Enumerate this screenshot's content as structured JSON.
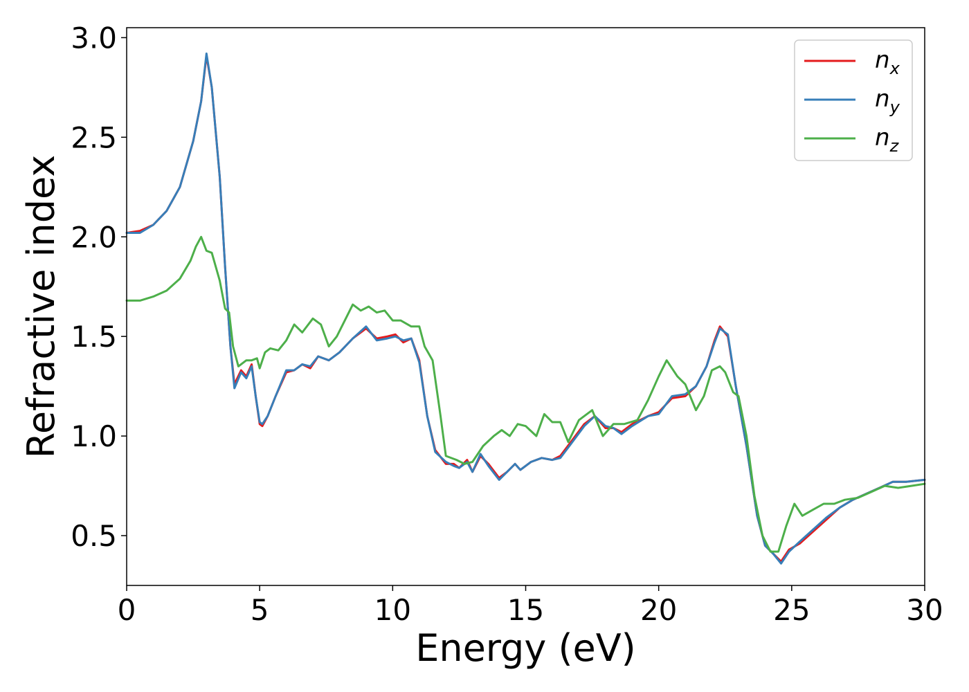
{
  "chart_data": {
    "type": "line",
    "title": "",
    "xlabel": "Energy (eV)",
    "ylabel": "Refractive index",
    "xlim": [
      0,
      30
    ],
    "ylim": [
      0.25,
      3.05
    ],
    "xticks": [
      0,
      5,
      10,
      15,
      20,
      25,
      30
    ],
    "xtick_labels": [
      "0",
      "5",
      "10",
      "15",
      "20",
      "25",
      "30"
    ],
    "yticks": [
      0.5,
      1.0,
      1.5,
      2.0,
      2.5,
      3.0
    ],
    "ytick_labels": [
      "0.5",
      "1.0",
      "1.5",
      "2.0",
      "2.5",
      "3.0"
    ],
    "grid": false,
    "legend_position": "top-right",
    "series": [
      {
        "name": "n_x",
        "label_main": "n",
        "label_sub": "x",
        "color": "#e41a1c",
        "points": [
          [
            0,
            2.02
          ],
          [
            0.5,
            2.03
          ],
          [
            1,
            2.06
          ],
          [
            1.5,
            2.13
          ],
          [
            2,
            2.25
          ],
          [
            2.5,
            2.48
          ],
          [
            2.8,
            2.68
          ],
          [
            3.0,
            2.91
          ],
          [
            3.2,
            2.75
          ],
          [
            3.5,
            2.3
          ],
          [
            3.7,
            1.85
          ],
          [
            3.9,
            1.45
          ],
          [
            4.05,
            1.26
          ],
          [
            4.3,
            1.33
          ],
          [
            4.5,
            1.3
          ],
          [
            4.7,
            1.36
          ],
          [
            4.85,
            1.2
          ],
          [
            5.0,
            1.06
          ],
          [
            5.1,
            1.05
          ],
          [
            5.3,
            1.1
          ],
          [
            5.6,
            1.2
          ],
          [
            6.0,
            1.32
          ],
          [
            6.3,
            1.33
          ],
          [
            6.6,
            1.36
          ],
          [
            6.9,
            1.34
          ],
          [
            7.2,
            1.4
          ],
          [
            7.6,
            1.38
          ],
          [
            8.0,
            1.42
          ],
          [
            8.5,
            1.49
          ],
          [
            9.0,
            1.54
          ],
          [
            9.4,
            1.49
          ],
          [
            9.8,
            1.5
          ],
          [
            10.1,
            1.51
          ],
          [
            10.4,
            1.47
          ],
          [
            10.7,
            1.49
          ],
          [
            11.0,
            1.38
          ],
          [
            11.3,
            1.1
          ],
          [
            11.6,
            0.93
          ],
          [
            12.0,
            0.86
          ],
          [
            12.3,
            0.86
          ],
          [
            12.5,
            0.84
          ],
          [
            12.8,
            0.88
          ],
          [
            13.0,
            0.82
          ],
          [
            13.3,
            0.9
          ],
          [
            13.6,
            0.86
          ],
          [
            14.0,
            0.79
          ],
          [
            14.3,
            0.82
          ],
          [
            14.6,
            0.86
          ],
          [
            14.8,
            0.83
          ],
          [
            15.2,
            0.87
          ],
          [
            15.6,
            0.89
          ],
          [
            16.0,
            0.88
          ],
          [
            16.3,
            0.9
          ],
          [
            16.7,
            0.97
          ],
          [
            17.2,
            1.06
          ],
          [
            17.6,
            1.1
          ],
          [
            18.0,
            1.04
          ],
          [
            18.3,
            1.04
          ],
          [
            18.6,
            1.02
          ],
          [
            19.0,
            1.06
          ],
          [
            19.6,
            1.1
          ],
          [
            20.0,
            1.12
          ],
          [
            20.5,
            1.19
          ],
          [
            21.0,
            1.2
          ],
          [
            21.4,
            1.25
          ],
          [
            21.8,
            1.35
          ],
          [
            22.1,
            1.48
          ],
          [
            22.3,
            1.55
          ],
          [
            22.6,
            1.5
          ],
          [
            22.9,
            1.25
          ],
          [
            23.3,
            0.95
          ],
          [
            23.7,
            0.6
          ],
          [
            24.0,
            0.45
          ],
          [
            24.3,
            0.41
          ],
          [
            24.6,
            0.37
          ],
          [
            24.9,
            0.43
          ],
          [
            25.3,
            0.46
          ],
          [
            25.8,
            0.52
          ],
          [
            26.3,
            0.58
          ],
          [
            26.8,
            0.64
          ],
          [
            27.3,
            0.68
          ],
          [
            27.8,
            0.71
          ],
          [
            28.3,
            0.74
          ],
          [
            28.8,
            0.77
          ],
          [
            29.3,
            0.77
          ],
          [
            30.0,
            0.78
          ]
        ]
      },
      {
        "name": "n_y",
        "label_main": "n",
        "label_sub": "y",
        "color": "#377eb8",
        "points": [
          [
            0,
            2.02
          ],
          [
            0.5,
            2.02
          ],
          [
            1,
            2.06
          ],
          [
            1.5,
            2.13
          ],
          [
            2,
            2.25
          ],
          [
            2.5,
            2.48
          ],
          [
            2.8,
            2.68
          ],
          [
            3.0,
            2.92
          ],
          [
            3.2,
            2.75
          ],
          [
            3.5,
            2.3
          ],
          [
            3.7,
            1.85
          ],
          [
            3.9,
            1.45
          ],
          [
            4.05,
            1.24
          ],
          [
            4.3,
            1.32
          ],
          [
            4.5,
            1.29
          ],
          [
            4.7,
            1.35
          ],
          [
            4.85,
            1.2
          ],
          [
            5.0,
            1.07
          ],
          [
            5.1,
            1.06
          ],
          [
            5.3,
            1.1
          ],
          [
            5.6,
            1.2
          ],
          [
            6.0,
            1.33
          ],
          [
            6.3,
            1.33
          ],
          [
            6.6,
            1.36
          ],
          [
            6.9,
            1.35
          ],
          [
            7.2,
            1.4
          ],
          [
            7.6,
            1.38
          ],
          [
            8.0,
            1.42
          ],
          [
            8.5,
            1.49
          ],
          [
            9.0,
            1.55
          ],
          [
            9.4,
            1.48
          ],
          [
            9.8,
            1.49
          ],
          [
            10.1,
            1.5
          ],
          [
            10.4,
            1.48
          ],
          [
            10.7,
            1.49
          ],
          [
            11.0,
            1.37
          ],
          [
            11.3,
            1.1
          ],
          [
            11.6,
            0.92
          ],
          [
            12.0,
            0.87
          ],
          [
            12.3,
            0.85
          ],
          [
            12.5,
            0.84
          ],
          [
            12.8,
            0.87
          ],
          [
            13.0,
            0.82
          ],
          [
            13.3,
            0.91
          ],
          [
            13.6,
            0.85
          ],
          [
            14.0,
            0.78
          ],
          [
            14.3,
            0.82
          ],
          [
            14.6,
            0.86
          ],
          [
            14.8,
            0.83
          ],
          [
            15.2,
            0.87
          ],
          [
            15.6,
            0.89
          ],
          [
            16.0,
            0.88
          ],
          [
            16.3,
            0.89
          ],
          [
            16.7,
            0.96
          ],
          [
            17.2,
            1.05
          ],
          [
            17.6,
            1.1
          ],
          [
            18.0,
            1.05
          ],
          [
            18.3,
            1.04
          ],
          [
            18.6,
            1.01
          ],
          [
            19.0,
            1.05
          ],
          [
            19.6,
            1.1
          ],
          [
            20.0,
            1.11
          ],
          [
            20.5,
            1.2
          ],
          [
            21.0,
            1.21
          ],
          [
            21.4,
            1.25
          ],
          [
            21.8,
            1.35
          ],
          [
            22.1,
            1.47
          ],
          [
            22.3,
            1.54
          ],
          [
            22.6,
            1.51
          ],
          [
            22.9,
            1.25
          ],
          [
            23.3,
            0.95
          ],
          [
            23.7,
            0.6
          ],
          [
            24.0,
            0.45
          ],
          [
            24.3,
            0.41
          ],
          [
            24.6,
            0.36
          ],
          [
            24.9,
            0.42
          ],
          [
            25.3,
            0.47
          ],
          [
            25.8,
            0.53
          ],
          [
            26.3,
            0.59
          ],
          [
            26.8,
            0.64
          ],
          [
            27.3,
            0.68
          ],
          [
            27.8,
            0.71
          ],
          [
            28.3,
            0.74
          ],
          [
            28.8,
            0.77
          ],
          [
            29.3,
            0.77
          ],
          [
            30.0,
            0.78
          ]
        ]
      },
      {
        "name": "n_z",
        "label_main": "n",
        "label_sub": "z",
        "color": "#4daf4a",
        "points": [
          [
            0,
            1.68
          ],
          [
            0.5,
            1.68
          ],
          [
            1,
            1.7
          ],
          [
            1.5,
            1.73
          ],
          [
            2,
            1.79
          ],
          [
            2.4,
            1.88
          ],
          [
            2.6,
            1.95
          ],
          [
            2.8,
            2.0
          ],
          [
            3.0,
            1.93
          ],
          [
            3.2,
            1.92
          ],
          [
            3.5,
            1.78
          ],
          [
            3.7,
            1.64
          ],
          [
            3.85,
            1.62
          ],
          [
            4.0,
            1.45
          ],
          [
            4.2,
            1.35
          ],
          [
            4.5,
            1.38
          ],
          [
            4.7,
            1.38
          ],
          [
            4.9,
            1.39
          ],
          [
            5.0,
            1.34
          ],
          [
            5.2,
            1.42
          ],
          [
            5.4,
            1.44
          ],
          [
            5.7,
            1.43
          ],
          [
            6.0,
            1.48
          ],
          [
            6.3,
            1.56
          ],
          [
            6.6,
            1.52
          ],
          [
            7.0,
            1.59
          ],
          [
            7.3,
            1.56
          ],
          [
            7.6,
            1.45
          ],
          [
            7.9,
            1.5
          ],
          [
            8.2,
            1.58
          ],
          [
            8.5,
            1.66
          ],
          [
            8.8,
            1.63
          ],
          [
            9.1,
            1.65
          ],
          [
            9.4,
            1.62
          ],
          [
            9.7,
            1.63
          ],
          [
            10.0,
            1.58
          ],
          [
            10.3,
            1.58
          ],
          [
            10.7,
            1.55
          ],
          [
            11.0,
            1.55
          ],
          [
            11.2,
            1.45
          ],
          [
            11.5,
            1.38
          ],
          [
            11.8,
            1.1
          ],
          [
            12.0,
            0.9
          ],
          [
            12.4,
            0.88
          ],
          [
            12.7,
            0.86
          ],
          [
            13.0,
            0.87
          ],
          [
            13.4,
            0.95
          ],
          [
            13.8,
            1.0
          ],
          [
            14.1,
            1.03
          ],
          [
            14.4,
            1.0
          ],
          [
            14.7,
            1.06
          ],
          [
            15.0,
            1.05
          ],
          [
            15.4,
            1.0
          ],
          [
            15.7,
            1.11
          ],
          [
            16.0,
            1.07
          ],
          [
            16.3,
            1.07
          ],
          [
            16.6,
            0.97
          ],
          [
            17.0,
            1.08
          ],
          [
            17.5,
            1.13
          ],
          [
            17.9,
            1.0
          ],
          [
            18.3,
            1.06
          ],
          [
            18.7,
            1.06
          ],
          [
            19.2,
            1.08
          ],
          [
            19.6,
            1.18
          ],
          [
            20.0,
            1.3
          ],
          [
            20.3,
            1.38
          ],
          [
            20.7,
            1.3
          ],
          [
            21.0,
            1.26
          ],
          [
            21.4,
            1.13
          ],
          [
            21.7,
            1.2
          ],
          [
            22.0,
            1.33
          ],
          [
            22.3,
            1.35
          ],
          [
            22.5,
            1.32
          ],
          [
            22.8,
            1.22
          ],
          [
            23.0,
            1.2
          ],
          [
            23.3,
            1.0
          ],
          [
            23.6,
            0.7
          ],
          [
            23.9,
            0.5
          ],
          [
            24.2,
            0.42
          ],
          [
            24.5,
            0.42
          ],
          [
            24.8,
            0.55
          ],
          [
            25.1,
            0.66
          ],
          [
            25.4,
            0.6
          ],
          [
            25.8,
            0.63
          ],
          [
            26.2,
            0.66
          ],
          [
            26.6,
            0.66
          ],
          [
            27.0,
            0.68
          ],
          [
            27.5,
            0.69
          ],
          [
            28.0,
            0.72
          ],
          [
            28.5,
            0.75
          ],
          [
            29.0,
            0.74
          ],
          [
            29.5,
            0.75
          ],
          [
            30.0,
            0.76
          ]
        ]
      }
    ]
  }
}
